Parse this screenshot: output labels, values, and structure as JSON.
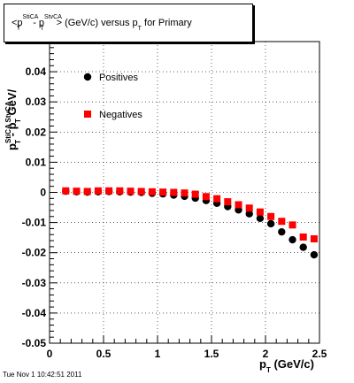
{
  "chart_data": {
    "type": "scatter",
    "title": {
      "prefix": "<p",
      "sup1": "StiCA",
      "mid": "- p",
      "sup2": "StvCA",
      "suffix1": "> (GeV/c) versus p",
      "suffix2": " for Primary",
      "sub": "T"
    },
    "xlabel": {
      "base": "p",
      "sub": "T",
      "rest": " (GeV/c)"
    },
    "ylabel": {
      "p1": "p",
      "sup1": "StiCA",
      "sub1": "T",
      "mid": " - p",
      "sup2": "StvCA",
      "sub2": "T",
      "rest": " GeV/"
    },
    "xlim": [
      0,
      2.5
    ],
    "ylim": [
      -0.05,
      0.05
    ],
    "x_ticks": [
      {
        "v": 0,
        "label": "0"
      },
      {
        "v": 0.5,
        "label": "0.5"
      },
      {
        "v": 1,
        "label": "1"
      },
      {
        "v": 1.5,
        "label": "1.5"
      },
      {
        "v": 2,
        "label": "2"
      },
      {
        "v": 2.5,
        "label": "2.5"
      }
    ],
    "y_ticks": [
      {
        "v": 0.04,
        "label": "0.04"
      },
      {
        "v": 0.03,
        "label": "0.03"
      },
      {
        "v": 0.02,
        "label": "0.02"
      },
      {
        "v": 0.01,
        "label": "0.01"
      },
      {
        "v": 0,
        "label": "0"
      },
      {
        "v": -0.01,
        "label": "-0.01"
      },
      {
        "v": -0.02,
        "label": "-0.02"
      },
      {
        "v": -0.03,
        "label": "-0.03"
      },
      {
        "v": -0.04,
        "label": "-0.04"
      },
      {
        "v": -0.05,
        "label": "-0.05"
      }
    ],
    "grid": "dotted",
    "legend_position": "upper-left",
    "series": [
      {
        "name": "Positives",
        "marker": "circle",
        "color": "#000000",
        "x": [
          0.15,
          0.25,
          0.35,
          0.45,
          0.55,
          0.65,
          0.75,
          0.85,
          0.95,
          1.05,
          1.15,
          1.25,
          1.35,
          1.45,
          1.55,
          1.65,
          1.75,
          1.85,
          1.95,
          2.05,
          2.15,
          2.25,
          2.35,
          2.45
        ],
        "y": [
          0.0004,
          0.0002,
          0.0001,
          0.0002,
          0.0003,
          0.0002,
          0.0001,
          0.0,
          -0.0003,
          -0.0005,
          -0.0009,
          -0.0013,
          -0.0019,
          -0.0027,
          -0.0036,
          -0.0047,
          -0.0058,
          -0.0071,
          -0.0086,
          -0.0104,
          -0.0131,
          -0.0157,
          -0.0182,
          -0.0207
        ]
      },
      {
        "name": "Negatives",
        "marker": "square",
        "color": "#ff0000",
        "x": [
          0.15,
          0.25,
          0.35,
          0.45,
          0.55,
          0.65,
          0.75,
          0.85,
          0.95,
          1.05,
          1.15,
          1.25,
          1.35,
          1.45,
          1.55,
          1.65,
          1.75,
          1.85,
          1.95,
          2.05,
          2.15,
          2.25,
          2.35,
          2.45
        ],
        "y": [
          0.0005,
          0.0004,
          0.0003,
          0.0005,
          0.0005,
          0.0005,
          0.0004,
          0.0003,
          0.0002,
          0.0001,
          0.0,
          -0.0002,
          -0.0006,
          -0.0014,
          -0.0021,
          -0.0031,
          -0.0041,
          -0.0052,
          -0.0065,
          -0.008,
          -0.0096,
          -0.0108,
          -0.0148,
          -0.0154
        ]
      }
    ]
  },
  "footer": {
    "timestamp": "Tue Nov  1 10:42:51 2011"
  }
}
